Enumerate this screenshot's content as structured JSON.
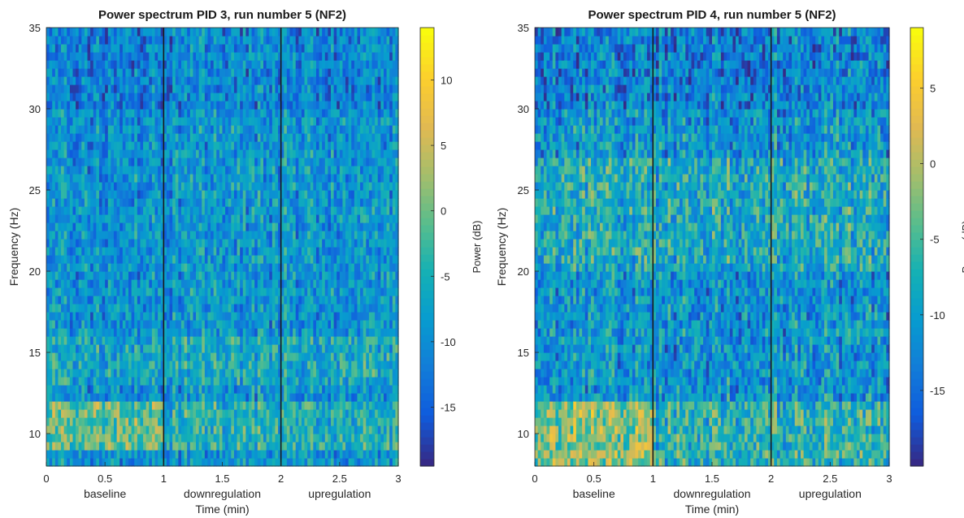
{
  "chart_data": [
    {
      "type": "heatmap",
      "title": "Power spectrum PID 3, run number 5 (NF2)",
      "xlabel": "Time (min)",
      "ylabel": "Frequency (Hz)",
      "xlim": [
        0,
        3
      ],
      "ylim": [
        8,
        35
      ],
      "x_ticks": [
        "0",
        "0.5",
        "1",
        "1.5",
        "2",
        "2.5",
        "3"
      ],
      "y_ticks": [
        "10",
        "15",
        "20",
        "25",
        "30",
        "35"
      ],
      "phase_labels": [
        "baseline",
        "downregulation",
        "upregulation"
      ],
      "phase_boundaries_min": [
        1,
        2
      ],
      "colorbar": {
        "label": "Power (dB)",
        "range": [
          -19.5,
          14
        ],
        "ticks": [
          "10",
          "5",
          "0",
          "-5",
          "-10",
          "-15"
        ],
        "colormap": "parula"
      },
      "power_profile_db": {
        "base": -9,
        "high_band_hz": [
          9,
          12
        ],
        "mid_band_hz": [
          13,
          16
        ],
        "description_free": true
      }
    },
    {
      "type": "heatmap",
      "title": "Power spectrum PID 4, run number 5 (NF2)",
      "xlabel": "Time (min)",
      "ylabel": "Frequency (Hz)",
      "xlim": [
        0,
        3
      ],
      "ylim": [
        8,
        35
      ],
      "x_ticks": [
        "0",
        "0.5",
        "1",
        "1.5",
        "2",
        "2.5",
        "3"
      ],
      "y_ticks": [
        "10",
        "15",
        "20",
        "25",
        "30",
        "35"
      ],
      "phase_labels": [
        "baseline",
        "downregulation",
        "upregulation"
      ],
      "phase_boundaries_min": [
        1,
        2
      ],
      "colorbar": {
        "label": "Power (dB)",
        "range": [
          -20,
          9
        ],
        "ticks": [
          "5",
          "0",
          "-5",
          "-10",
          "-15"
        ],
        "colormap": "parula"
      },
      "power_profile_db": {
        "base": -11,
        "high_band_hz": [
          8,
          12
        ],
        "mid_band_hz": [
          20,
          27
        ],
        "description_free": true
      }
    }
  ],
  "colors": {
    "parula_low": "#352a87",
    "parula_high": "#f9fb0e",
    "boundary_line": "#1a1a1a"
  }
}
